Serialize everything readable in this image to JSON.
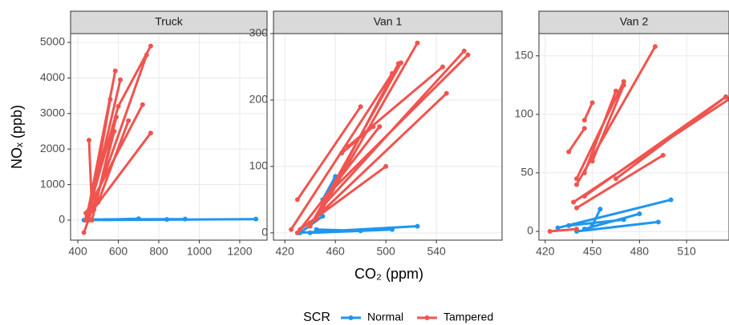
{
  "chart_data": [
    {
      "type": "line",
      "title": "Truck",
      "xlim": [
        364,
        1335
      ],
      "ylim": [
        -563,
        5248
      ],
      "xticks": [
        400,
        600,
        800,
        1000,
        1200
      ],
      "yticks": [
        0,
        1000,
        2000,
        3000,
        4000,
        5000
      ],
      "series": [
        {
          "name": "Normal",
          "color": "#1f96f0",
          "x": [
            430,
            1280,
            null,
            450,
            840,
            null,
            440,
            700,
            null,
            460,
            930
          ],
          "values": [
            0,
            30,
            null,
            10,
            20,
            null,
            0,
            40,
            null,
            20,
            30
          ]
        },
        {
          "name": "Tampered",
          "color": "#f0544f",
          "x": [
            440,
            600,
            760,
            null,
            430,
            740,
            null,
            445,
            585,
            null,
            450,
            610,
            null,
            455,
            560,
            null,
            455,
            470,
            null,
            440,
            720,
            null,
            450,
            760,
            null,
            470,
            590,
            null,
            480,
            580,
            null,
            500,
            650
          ],
          "values": [
            0,
            3200,
            4900,
            null,
            -350,
            4650,
            null,
            100,
            4200,
            null,
            50,
            3950,
            null,
            0,
            3400,
            null,
            2250,
            300,
            null,
            200,
            3250,
            null,
            100,
            2450,
            null,
            0,
            2900,
            null,
            300,
            2500,
            null,
            500,
            2800
          ]
        }
      ]
    },
    {
      "type": "line",
      "title": "Van 1",
      "xlim": [
        411,
        592
      ],
      "ylim": [
        -11,
        300
      ],
      "xticks": [
        420,
        460,
        500,
        540
      ],
      "yticks": [
        0,
        100,
        200,
        300
      ],
      "series": [
        {
          "name": "Normal",
          "color": "#1f96f0",
          "x": [
            430,
            525,
            null,
            440,
            505,
            null,
            445,
            480,
            null,
            450,
            460,
            null,
            432,
            450
          ],
          "values": [
            0,
            10,
            null,
            0,
            5,
            null,
            5,
            3,
            null,
            50,
            85,
            null,
            0,
            25
          ]
        },
        {
          "name": "Tampered",
          "color": "#f0544f",
          "x": [
            430,
            480,
            null,
            425,
            505,
            null,
            430,
            495,
            null,
            440,
            512,
            null,
            445,
            510,
            null,
            448,
            525,
            null,
            432,
            500,
            null,
            450,
            562,
            null,
            455,
            565,
            null,
            440,
            548,
            null,
            470,
            545,
            null,
            465,
            490
          ],
          "values": [
            50,
            190,
            null,
            5,
            240,
            null,
            0,
            160,
            null,
            10,
            256,
            null,
            20,
            255,
            null,
            30,
            286,
            null,
            5,
            100,
            null,
            40,
            274,
            null,
            60,
            268,
            null,
            15,
            210,
            null,
            130,
            250,
            null,
            120,
            160
          ]
        }
      ]
    },
    {
      "type": "line",
      "title": "Van 2",
      "xlim": [
        416,
        537
      ],
      "ylim": [
        -7.5,
        169
      ],
      "xticks": [
        420,
        450,
        480,
        510
      ],
      "yticks": [
        0,
        50,
        100,
        150
      ],
      "series": [
        {
          "name": "Normal",
          "color": "#1f96f0",
          "x": [
            428,
            500,
            null,
            440,
            492,
            null,
            445,
            480,
            null,
            450,
            455,
            null,
            435,
            470
          ],
          "values": [
            3,
            27,
            null,
            0,
            8,
            null,
            2,
            15,
            null,
            5,
            19,
            null,
            5,
            10
          ]
        },
        {
          "name": "Tampered",
          "color": "#f0544f",
          "x": [
            423,
            440,
            null,
            440,
            490,
            null,
            445,
            450,
            null,
            435,
            445,
            null,
            440,
            470,
            null,
            445,
            535,
            null,
            438,
            537,
            null,
            465,
            535,
            null,
            450,
            470,
            null,
            440,
            495,
            null,
            445,
            465
          ],
          "values": [
            0,
            2,
            null,
            40,
            158,
            null,
            95,
            110,
            null,
            68,
            88,
            null,
            45,
            128,
            null,
            30,
            115,
            null,
            25,
            113,
            null,
            45,
            115,
            null,
            60,
            125,
            null,
            20,
            65,
            null,
            50,
            120
          ]
        }
      ]
    }
  ],
  "x_label": "CO₂ (ppm)",
  "y_label": "NOₓ (ppb)",
  "legend_title": "SCR"
}
